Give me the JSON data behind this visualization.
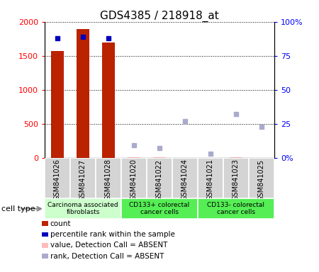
{
  "title": "GDS4385 / 218918_at",
  "samples": [
    "GSM841026",
    "GSM841027",
    "GSM841028",
    "GSM841020",
    "GSM841022",
    "GSM841024",
    "GSM841021",
    "GSM841023",
    "GSM841025"
  ],
  "count_values": [
    1570,
    1890,
    1690,
    0,
    0,
    0,
    0,
    0,
    0
  ],
  "count_absent": [
    false,
    false,
    false,
    true,
    true,
    true,
    true,
    true,
    true
  ],
  "rank_values": [
    88,
    89,
    88,
    0,
    0,
    0,
    0,
    0,
    0
  ],
  "rank_absent": [
    false,
    false,
    false,
    true,
    true,
    true,
    true,
    true,
    true
  ],
  "absent_value_values": [
    0,
    0,
    0,
    5,
    4,
    2,
    2,
    5,
    1
  ],
  "absent_rank_values": [
    0,
    0,
    0,
    9,
    7,
    27,
    3,
    32,
    23
  ],
  "groups": [
    {
      "label": "Carcinoma associated\nfibroblasts",
      "start": 0,
      "end": 3,
      "color": "#ccffcc"
    },
    {
      "label": "CD133+ colorectal\ncancer cells",
      "start": 3,
      "end": 6,
      "color": "#55ee55"
    },
    {
      "label": "CD133- colorectal\ncancer cells",
      "start": 6,
      "end": 9,
      "color": "#55ee55"
    }
  ],
  "ylim_left": [
    0,
    2000
  ],
  "ylim_right": [
    0,
    100
  ],
  "yticks_left": [
    0,
    500,
    1000,
    1500,
    2000
  ],
  "ytick_labels_left": [
    "0",
    "500",
    "1000",
    "1500",
    "2000"
  ],
  "yticks_right": [
    0,
    25,
    50,
    75,
    100
  ],
  "ytick_labels_right": [
    "0%",
    "25",
    "50",
    "75",
    "100%"
  ],
  "bar_color": "#bb2200",
  "rank_color": "#0000bb",
  "absent_value_color": "#ffbbbb",
  "absent_rank_color": "#aaaacc",
  "legend_items": [
    {
      "color": "#bb2200",
      "label": "count"
    },
    {
      "color": "#0000bb",
      "label": "percentile rank within the sample"
    },
    {
      "color": "#ffbbbb",
      "label": "value, Detection Call = ABSENT"
    },
    {
      "color": "#aaaacc",
      "label": "rank, Detection Call = ABSENT"
    }
  ],
  "cell_type_label": "cell type",
  "title_fontsize": 11,
  "tick_fontsize": 8,
  "label_fontsize": 8,
  "sample_box_color": "#d4d4d4",
  "scale": 20.0
}
